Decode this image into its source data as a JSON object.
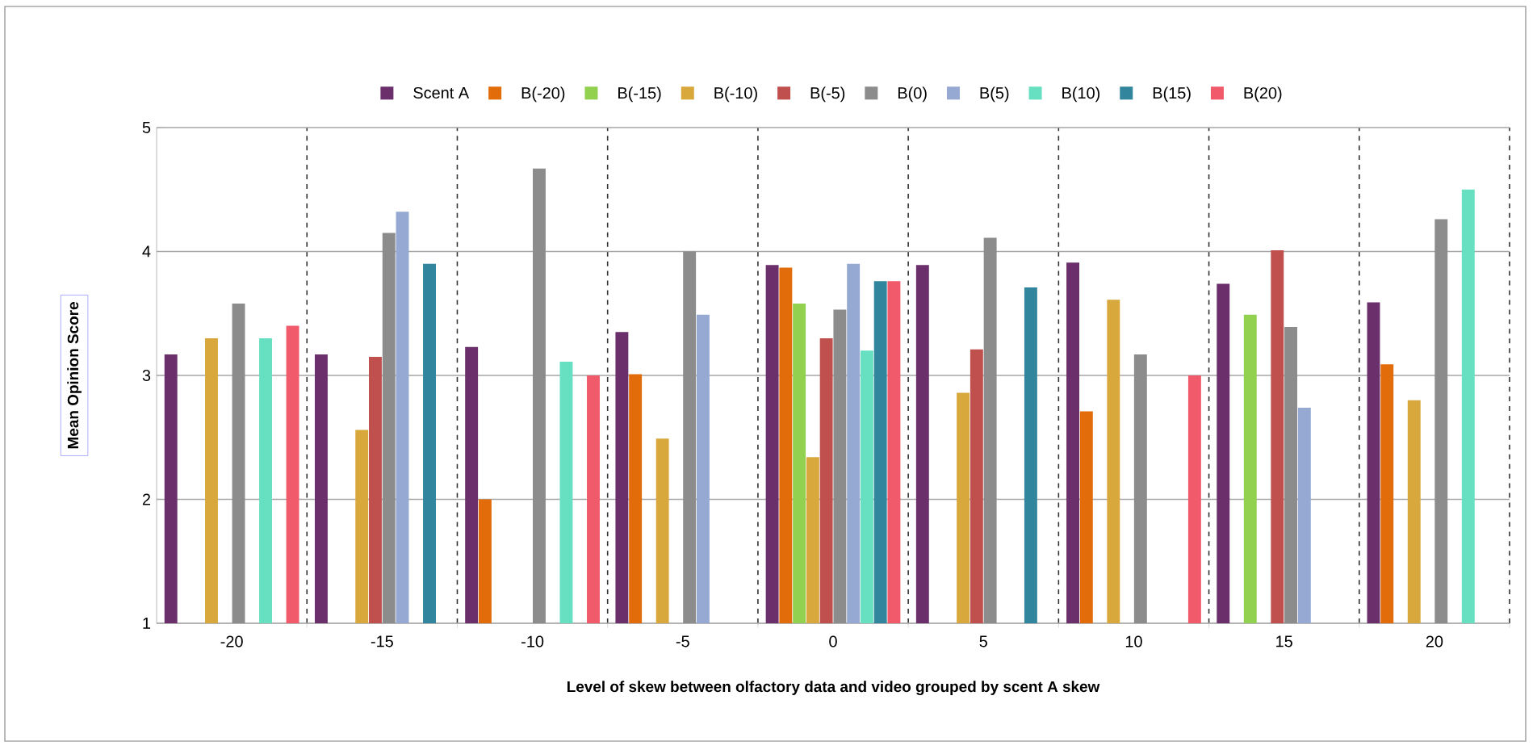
{
  "chart_data": {
    "type": "bar",
    "xlabel": "Level of skew between olfactory data and video grouped by scent A skew",
    "ylabel": "Mean Opinion Score",
    "categories": [
      "-20",
      "-15",
      "-10",
      "-5",
      "0",
      "5",
      "10",
      "15",
      "20"
    ],
    "series": [
      {
        "name": "Scent A",
        "color": "#6b2f6b",
        "values": [
          3.17,
          3.17,
          3.23,
          3.35,
          3.89,
          3.89,
          3.91,
          3.74,
          3.59
        ]
      },
      {
        "name": "B(-20)",
        "color": "#e36c0a",
        "values": [
          null,
          null,
          2.0,
          3.01,
          3.87,
          null,
          2.71,
          null,
          3.09
        ]
      },
      {
        "name": "B(-15)",
        "color": "#92d050",
        "values": [
          null,
          null,
          null,
          null,
          3.58,
          null,
          null,
          3.49,
          null
        ]
      },
      {
        "name": "B(-10)",
        "color": "#d9a83c",
        "values": [
          3.3,
          2.56,
          null,
          2.49,
          2.34,
          2.86,
          3.61,
          null,
          2.8
        ]
      },
      {
        "name": "B(-5)",
        "color": "#c0504d",
        "values": [
          null,
          3.15,
          null,
          null,
          3.3,
          3.21,
          null,
          4.01,
          null
        ]
      },
      {
        "name": "B(0)",
        "color": "#8c8c8c",
        "values": [
          3.58,
          4.15,
          4.67,
          4.0,
          3.53,
          4.11,
          3.17,
          3.39,
          4.26
        ]
      },
      {
        "name": "B(5)",
        "color": "#95a9d3",
        "values": [
          null,
          4.32,
          null,
          3.49,
          3.9,
          null,
          null,
          2.74,
          null
        ]
      },
      {
        "name": "B(10)",
        "color": "#66e0c0",
        "values": [
          3.3,
          null,
          3.11,
          null,
          3.2,
          null,
          null,
          null,
          4.5
        ]
      },
      {
        "name": "B(15)",
        "color": "#31859c",
        "values": [
          null,
          3.9,
          null,
          null,
          3.76,
          3.71,
          null,
          null,
          null
        ]
      },
      {
        "name": "B(20)",
        "color": "#f05a6a",
        "values": [
          3.4,
          null,
          3.0,
          null,
          3.76,
          null,
          3.0,
          null,
          null
        ]
      }
    ],
    "ylim": [
      1,
      5
    ],
    "yticks": [
      1,
      2,
      3,
      4,
      5
    ],
    "grid": true,
    "legend": "top"
  }
}
